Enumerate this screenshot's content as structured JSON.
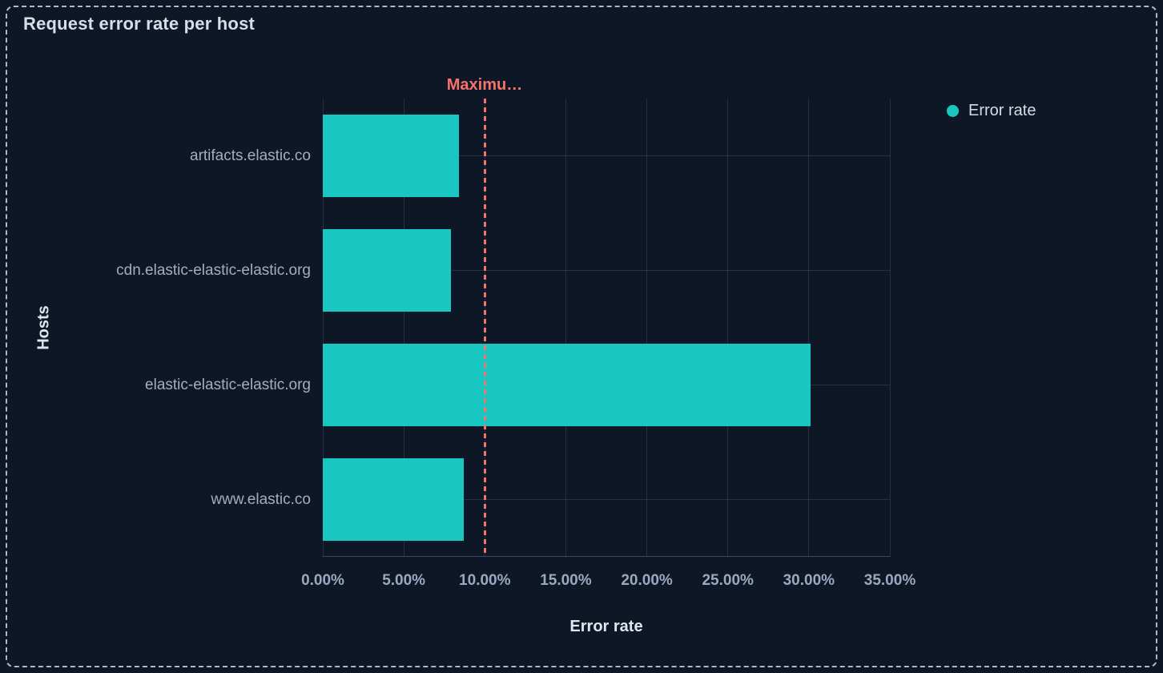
{
  "panel": {
    "title": "Request error rate per host"
  },
  "legend": {
    "items": [
      {
        "label": "Error rate",
        "color": "#18c7c1"
      }
    ]
  },
  "chart_data": {
    "type": "bar",
    "orientation": "horizontal",
    "title": "Request error rate per host",
    "xlabel": "Error rate",
    "ylabel": "Hosts",
    "categories": [
      "artifacts.elastic.co",
      "cdn.elastic-elastic-elastic.org",
      "elastic-elastic-elastic.org",
      "www.elastic.co"
    ],
    "series": [
      {
        "name": "Error rate",
        "color": "#18c7c1",
        "unit": "%",
        "values": [
          8.4,
          7.9,
          30.1,
          8.7
        ]
      }
    ],
    "xlim": [
      0,
      35
    ],
    "x_ticks": [
      {
        "value": 0,
        "label": "0.00%"
      },
      {
        "value": 5,
        "label": "5.00%"
      },
      {
        "value": 10,
        "label": "10.00%"
      },
      {
        "value": 15,
        "label": "15.00%"
      },
      {
        "value": 20,
        "label": "20.00%"
      },
      {
        "value": 25,
        "label": "25.00%"
      },
      {
        "value": 30,
        "label": "30.00%"
      },
      {
        "value": 35,
        "label": "35.00%"
      }
    ],
    "grid": true,
    "legend_position": "top-right",
    "threshold": {
      "label": "Maximu…",
      "value": 10,
      "color": "#f6726a",
      "style": "dashed"
    }
  },
  "colors": {
    "background": "#0e1726",
    "panel_border": "#a9b9d0",
    "bar": "#18c7c1",
    "threshold": "#f6726a",
    "grid": "rgba(160,180,215,0.16)"
  }
}
